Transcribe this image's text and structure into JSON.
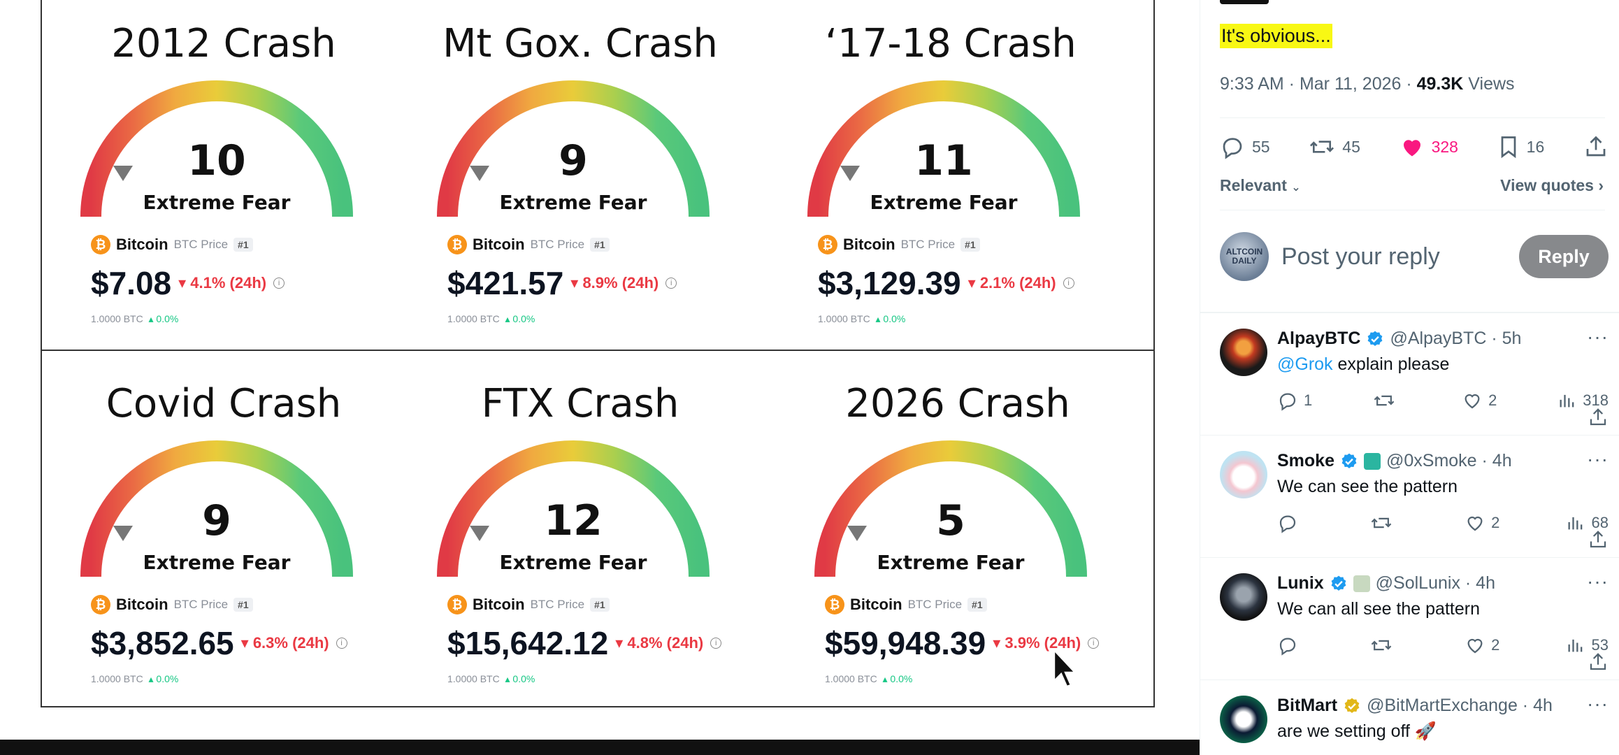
{
  "cards": [
    {
      "title": "2012 Crash",
      "value": "10",
      "label": "Extreme Fear",
      "coin": "Bitcoin",
      "coin_sub": "BTC Price",
      "rank": "#1",
      "price": "$7.08",
      "change": "4.1% (24h)",
      "btc": "1.0000 BTC",
      "btc_change": "0.0%"
    },
    {
      "title": "Mt Gox. Crash",
      "value": "9",
      "label": "Extreme Fear",
      "coin": "Bitcoin",
      "coin_sub": "BTC Price",
      "rank": "#1",
      "price": "$421.57",
      "change": "8.9% (24h)",
      "btc": "1.0000 BTC",
      "btc_change": "0.0%"
    },
    {
      "title": "‘17-18 Crash",
      "value": "11",
      "label": "Extreme Fear",
      "coin": "Bitcoin",
      "coin_sub": "BTC Price",
      "rank": "#1",
      "price": "$3,129.39",
      "change": "2.1% (24h)",
      "btc": "1.0000 BTC",
      "btc_change": "0.0%"
    },
    {
      "title": "Covid Crash",
      "value": "9",
      "label": "Extreme Fear",
      "coin": "Bitcoin",
      "coin_sub": "BTC Price",
      "rank": "#1",
      "price": "$3,852.65",
      "change": "6.3% (24h)",
      "btc": "1.0000 BTC",
      "btc_change": "0.0%"
    },
    {
      "title": "FTX Crash",
      "value": "12",
      "label": "Extreme Fear",
      "coin": "Bitcoin",
      "coin_sub": "BTC Price",
      "rank": "#1",
      "price": "$15,642.12",
      "change": "4.8% (24h)",
      "btc": "1.0000 BTC",
      "btc_change": "0.0%"
    },
    {
      "title": "2026 Crash",
      "value": "5",
      "label": "Extreme Fear",
      "coin": "Bitcoin",
      "coin_sub": "BTC Price",
      "rank": "#1",
      "price": "$59,948.39",
      "change": "3.9% (24h)",
      "btc": "1.0000 BTC",
      "btc_change": "0.0%"
    }
  ],
  "tweet": {
    "text": "It's obvious...",
    "time": "9:33 AM · Mar 11, 2026 · ",
    "views_count": "49.3K",
    "views_label": " Views",
    "stats": {
      "replies": "55",
      "reposts": "45",
      "likes": "328",
      "bookmarks": "16"
    },
    "sort_label": "Relevant",
    "view_quotes": "View quotes",
    "reply_placeholder": "Post your reply",
    "reply_button": "Reply",
    "reply_avatar_text": "ALTCOIN DAILY"
  },
  "replies": [
    {
      "name": "AlpayBTC",
      "handle": "@AlpayBTC · 5h",
      "mention": "@Grok",
      "text": " explain please",
      "comments": "1",
      "reposts": "",
      "likes": "2",
      "views": "318",
      "verified": "blue"
    },
    {
      "name": "Smoke",
      "handle": "@0xSmoke · 4h",
      "mention": "",
      "text": "We can see the pattern",
      "comments": "",
      "reposts": "",
      "likes": "2",
      "views": "68",
      "verified": "blue"
    },
    {
      "name": "Lunix",
      "handle": "@SolLunix · 4h",
      "mention": "",
      "text": "We can all see the pattern",
      "comments": "",
      "reposts": "",
      "likes": "2",
      "views": "53",
      "verified": "blue"
    },
    {
      "name": "BitMart",
      "handle": "@BitMartExchange · 4h",
      "mention": "",
      "text": "are we setting off 🚀",
      "comments": "",
      "reposts": "",
      "likes": "",
      "views": "",
      "verified": "gold"
    }
  ],
  "colors": {
    "like": "#f91880",
    "verified_blue": "#1d9bf0",
    "verified_gold": "#e2b719",
    "down": "#ea3943",
    "up": "#16c784",
    "highlight": "#f8f814"
  }
}
